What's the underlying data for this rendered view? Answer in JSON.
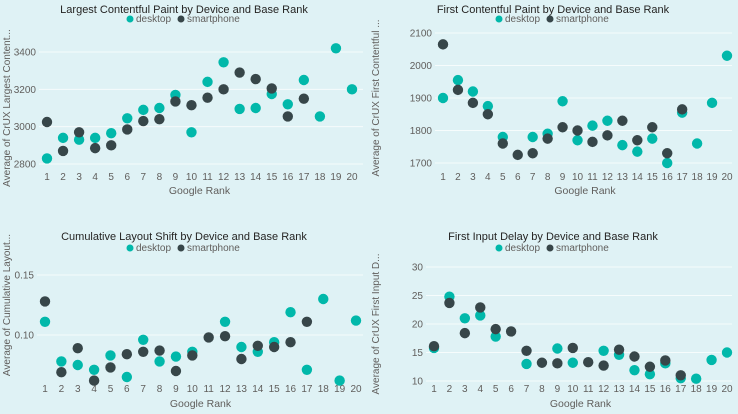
{
  "colors": {
    "background": "#DFF2F5",
    "desktop": "#01B8AA",
    "smartphone": "#374649",
    "title_text": "#252423",
    "axis_text": "#605E5C",
    "gridline": "rgba(255,255,255,0.72)"
  },
  "legend": {
    "items": [
      {
        "label": "desktop"
      },
      {
        "label": "smartphone"
      }
    ]
  },
  "chart_data": [
    {
      "type": "scatter",
      "title": "Largest Contentful Paint by Device and Base Rank",
      "xlabel": "Google Rank",
      "ylabel": "Average of CrUX Largest Content...",
      "legend_position": "top",
      "grid": true,
      "x_ticks": [
        "1",
        "2",
        "3",
        "4",
        "5",
        "6",
        "7",
        "8",
        "9",
        "10",
        "11",
        "12",
        "13",
        "14",
        "15",
        "16",
        "17",
        "18",
        "19",
        "20"
      ],
      "y_ticks": [
        {
          "v": 2800,
          "label": "2800"
        },
        {
          "v": 3000,
          "label": "3000"
        },
        {
          "v": 3200,
          "label": "3200"
        },
        {
          "v": 3400,
          "label": "3400"
        }
      ],
      "ylim": [
        2770,
        3465
      ],
      "series": [
        {
          "name": "desktop",
          "values": [
            2830,
            2940,
            2930,
            2940,
            2965,
            3045,
            3090,
            3100,
            3170,
            2970,
            3240,
            3345,
            3095,
            3100,
            3175,
            3120,
            3250,
            3055,
            3420,
            3200
          ]
        },
        {
          "name": "smartphone",
          "values": [
            3025,
            2870,
            2970,
            2885,
            2900,
            2985,
            3030,
            3040,
            3135,
            3115,
            3155,
            3200,
            3290,
            3255,
            3205,
            3055,
            3150,
            null,
            null,
            null
          ]
        }
      ]
    },
    {
      "type": "scatter",
      "title": "First Contentful Paint by Device and Base Rank",
      "xlabel": "Google Rank",
      "ylabel": "Average of CrUX First Contentful ...",
      "legend_position": "top",
      "grid": true,
      "x_ticks": [
        "1",
        "2",
        "3",
        "4",
        "5",
        "6",
        "7",
        "8",
        "9",
        "10",
        "11",
        "12",
        "13",
        "14",
        "15",
        "16",
        "17",
        "18",
        "19",
        "20"
      ],
      "y_ticks": [
        {
          "v": 1700,
          "label": "1700"
        },
        {
          "v": 1800,
          "label": "1800"
        },
        {
          "v": 1900,
          "label": "1900"
        },
        {
          "v": 2000,
          "label": "2000"
        },
        {
          "v": 2100,
          "label": "2100"
        }
      ],
      "ylim": [
        1685,
        2110
      ],
      "series": [
        {
          "name": "desktop",
          "values": [
            1900,
            1955,
            1920,
            1875,
            1780,
            null,
            1780,
            1790,
            1890,
            1770,
            1815,
            1830,
            1755,
            1735,
            1775,
            1700,
            1855,
            1760,
            1885,
            2030
          ]
        },
        {
          "name": "smartphone",
          "values": [
            2065,
            1925,
            1885,
            1850,
            1760,
            1725,
            1730,
            1775,
            1810,
            1800,
            1765,
            1785,
            1830,
            1770,
            1810,
            1730,
            1865,
            null,
            null,
            null
          ]
        }
      ]
    },
    {
      "type": "scatter",
      "title": "Cumulative Layout Shift by Device and Base Rank",
      "xlabel": "Google Rank",
      "ylabel": "Average of Cumulative Layout...",
      "legend_position": "top",
      "grid": true,
      "x_ticks": [
        "1",
        "2",
        "3",
        "4",
        "5",
        "6",
        "7",
        "8",
        "9",
        "10",
        "11",
        "12",
        "13",
        "14",
        "15",
        "16",
        "17",
        "18",
        "19",
        "20"
      ],
      "y_ticks": [
        {
          "v": 0.1,
          "label": "0.10"
        },
        {
          "v": 0.15,
          "label": "0.15"
        }
      ],
      "ylim": [
        0.055,
        0.165
      ],
      "series": [
        {
          "name": "desktop",
          "values": [
            0.111,
            0.078,
            0.075,
            0.071,
            0.083,
            0.065,
            0.096,
            0.078,
            0.082,
            0.086,
            null,
            0.111,
            0.09,
            0.086,
            0.094,
            0.119,
            0.071,
            0.13,
            0.062,
            0.112
          ]
        },
        {
          "name": "smartphone",
          "values": [
            0.128,
            0.069,
            0.089,
            0.062,
            0.073,
            0.084,
            0.086,
            0.087,
            0.07,
            0.083,
            0.098,
            0.099,
            0.08,
            0.091,
            0.09,
            0.094,
            0.111,
            null,
            null,
            null
          ]
        }
      ]
    },
    {
      "type": "scatter",
      "title": "First Input Delay by Device and Base Rank",
      "xlabel": "Google Rank",
      "ylabel": "Average of CrUX First Input D...",
      "legend_position": "top",
      "grid": true,
      "x_ticks": [
        "1",
        "2",
        "3",
        "4",
        "5",
        "6",
        "7",
        "8",
        "9",
        "10",
        "11",
        "12",
        "13",
        "14",
        "15",
        "16",
        "17",
        "18",
        "19",
        "20"
      ],
      "y_ticks": [
        {
          "v": 10,
          "label": "10"
        },
        {
          "v": 15,
          "label": "15"
        },
        {
          "v": 20,
          "label": "20"
        },
        {
          "v": 25,
          "label": "25"
        },
        {
          "v": 30,
          "label": "30"
        }
      ],
      "ylim": [
        9.5,
        30.5
      ],
      "series": [
        {
          "name": "desktop",
          "values": [
            15.8,
            24.8,
            21.0,
            21.5,
            17.8,
            null,
            13.0,
            null,
            15.7,
            13.2,
            null,
            15.3,
            14.6,
            11.9,
            11.2,
            13.1,
            10.5,
            10.4,
            13.7,
            15.0
          ]
        },
        {
          "name": "smartphone",
          "values": [
            16.1,
            23.7,
            18.4,
            22.9,
            19.1,
            18.7,
            15.3,
            13.2,
            13.1,
            15.8,
            13.3,
            12.7,
            15.5,
            14.3,
            12.5,
            13.6,
            11.0,
            null,
            null,
            null
          ]
        }
      ]
    }
  ]
}
